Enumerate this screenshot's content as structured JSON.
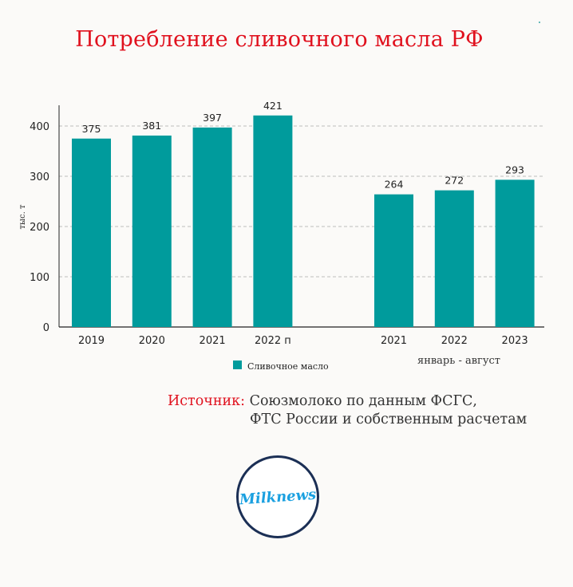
{
  "title": "Потребление сливочного масла РФ",
  "source": {
    "label": "Источник:",
    "line1": "Союзмолоко по данным ФСГС,",
    "line2": "ФТС России и собственным расчетам"
  },
  "logo_text": "Milknews",
  "colors": {
    "bar": "#009b9c",
    "title": "#e0111e",
    "grid": "#bdbdbd",
    "logo_ring": "#1b2f55",
    "logo_text": "#1aa0e0"
  },
  "chart_data": {
    "type": "bar",
    "categories": [
      "2019",
      "2020",
      "2021",
      "2022 п",
      "",
      "2021",
      "2022",
      "2023"
    ],
    "series": [
      {
        "name": "Сливочное масло",
        "values": [
          375,
          381,
          397,
          421,
          null,
          264,
          272,
          293
        ]
      }
    ],
    "ylabel": "тыс. т",
    "yticks": [
      0,
      100,
      200,
      300,
      400
    ],
    "ylim": [
      0,
      440
    ],
    "group_annotation": "январь - август",
    "legend_position": "bottom",
    "grid": true
  }
}
